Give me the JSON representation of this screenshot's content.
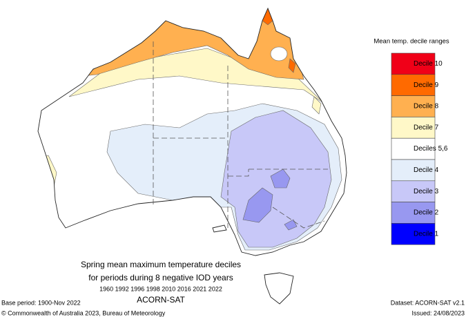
{
  "legend": {
    "title": "Mean temp. decile ranges",
    "items": [
      {
        "label": "Decile 10",
        "color": "#f00018"
      },
      {
        "label": "Decile 9",
        "color": "#ff6a00"
      },
      {
        "label": "Decile 8",
        "color": "#ffb050"
      },
      {
        "label": "Decile 7",
        "color": "#fff8c8"
      },
      {
        "label": "Deciles 5,6",
        "color": "#ffffff"
      },
      {
        "label": "Decile 4",
        "color": "#e4eefa"
      },
      {
        "label": "Decile 3",
        "color": "#c8c8f8"
      },
      {
        "label": "Decile 2",
        "color": "#9898f0"
      },
      {
        "label": "Decile 1",
        "color": "#0000ff"
      }
    ]
  },
  "caption": {
    "lines": [
      "Spring mean maximum temperature deciles",
      "for periods during 8 negative IOD years",
      "1960 1992 1996 1998 2010 2016 2021 2022",
      "ACORN-SAT"
    ]
  },
  "footer": {
    "base_period": "Base period: 1900-Nov 2022",
    "copyright": "© Commonwealth of Australia 2023, Bureau of Meteorology",
    "dataset": "Dataset: ACORN-SAT v2.1",
    "issued": "Issued: 24/08/2023"
  }
}
